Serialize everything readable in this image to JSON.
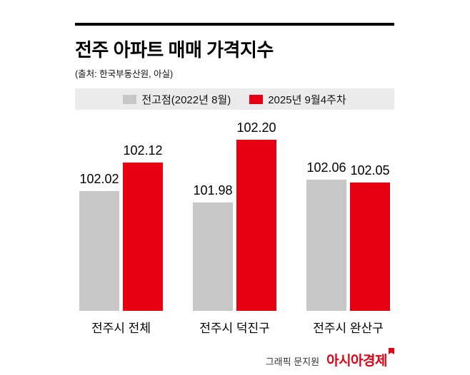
{
  "header": {
    "title": "전주 아파트 매매 가격지수",
    "source": "(출처: 한국부동산원, 아실)"
  },
  "chart_data": {
    "type": "bar",
    "title": "전주 아파트 매매 가격지수",
    "subtitle": "(출처: 한국부동산원, 아실)",
    "categories": [
      "전주시 전체",
      "전주시 덕진구",
      "전주시 완산구"
    ],
    "series": [
      {
        "name": "전고점(2022년 8월)",
        "color": "#c7c7c7",
        "values": [
          102.02,
          101.98,
          102.06
        ]
      },
      {
        "name": "2025년 9월4주차",
        "color": "#e60012",
        "values": [
          102.12,
          102.2,
          102.05
        ]
      }
    ],
    "ylim": [
      101.6,
      102.3
    ],
    "grid": false,
    "legend_position": "top",
    "value_labels": true,
    "xlabel": "",
    "ylabel": ""
  },
  "footer": {
    "credit": "그래픽 문지원",
    "brand": "아시아경제"
  }
}
